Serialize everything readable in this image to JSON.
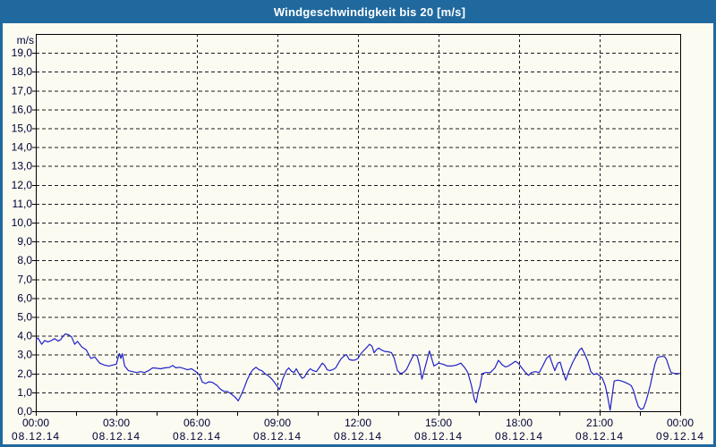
{
  "window": {
    "title": "Windgeschwindigkeit bis 20 [m/s]"
  },
  "colors": {
    "titlebar_bg": "#20699e",
    "window_border": "#20699e",
    "background": "#fbfbf2",
    "title_text": "#ffffff",
    "axis_text": "#000033",
    "grid": "#1c1c1c",
    "frame": "#000000",
    "series_line": "#2121c8"
  },
  "chart_data": {
    "type": "line",
    "title": "Windgeschwindigkeit bis 20 [m/s]",
    "y_unit": "m/s",
    "ylim": [
      0,
      20
    ],
    "y_tick_step": 1,
    "y_tick_labels": [
      "0,0",
      "1,0",
      "2,0",
      "3,0",
      "4,0",
      "5,0",
      "6,0",
      "7,0",
      "8,0",
      "9,0",
      "10,0",
      "11,0",
      "12,0",
      "13,0",
      "14,0",
      "15,0",
      "16,0",
      "17,0",
      "18,0",
      "19,0"
    ],
    "xlim_hours": [
      0,
      24
    ],
    "x_gridline_hours": [
      3,
      6,
      9,
      12,
      15,
      18,
      21
    ],
    "x_minor_tick_step_hours": 1.5,
    "grid_style": "dashed",
    "x_major_ticks": [
      {
        "hour": 0,
        "time": "00:00",
        "date": "08.12.14"
      },
      {
        "hour": 3,
        "time": "03:00",
        "date": "08.12.14"
      },
      {
        "hour": 6,
        "time": "06:00",
        "date": "08.12.14"
      },
      {
        "hour": 9,
        "time": "09:00",
        "date": "08.12.14"
      },
      {
        "hour": 12,
        "time": "12:00",
        "date": "08.12.14"
      },
      {
        "hour": 15,
        "time": "15:00",
        "date": "08.12.14"
      },
      {
        "hour": 18,
        "time": "18:00",
        "date": "08.12.14"
      },
      {
        "hour": 21,
        "time": "21:00",
        "date": "08.12.14"
      },
      {
        "hour": 24,
        "time": "00:00",
        "date": "09.12.14"
      }
    ],
    "series": [
      {
        "name": "Windgeschwindigkeit",
        "unit": "m/s",
        "color": "#2121c8",
        "points": [
          [
            0.0,
            3.8
          ],
          [
            0.08,
            3.88
          ],
          [
            0.22,
            3.55
          ],
          [
            0.33,
            3.75
          ],
          [
            0.45,
            3.68
          ],
          [
            0.58,
            3.75
          ],
          [
            0.7,
            3.85
          ],
          [
            0.83,
            3.72
          ],
          [
            0.93,
            3.8
          ],
          [
            1.0,
            3.95
          ],
          [
            1.1,
            4.1
          ],
          [
            1.22,
            4.05
          ],
          [
            1.33,
            3.95
          ],
          [
            1.45,
            3.55
          ],
          [
            1.55,
            3.7
          ],
          [
            1.72,
            3.4
          ],
          [
            1.88,
            3.25
          ],
          [
            2.05,
            2.8
          ],
          [
            2.2,
            2.88
          ],
          [
            2.38,
            2.55
          ],
          [
            2.55,
            2.45
          ],
          [
            2.72,
            2.4
          ],
          [
            2.87,
            2.45
          ],
          [
            3.0,
            2.5
          ],
          [
            3.11,
            3.05
          ],
          [
            3.17,
            2.8
          ],
          [
            3.22,
            3.05
          ],
          [
            3.31,
            2.4
          ],
          [
            3.45,
            2.15
          ],
          [
            3.6,
            2.1
          ],
          [
            3.75,
            2.05
          ],
          [
            3.9,
            2.1
          ],
          [
            4.05,
            2.05
          ],
          [
            4.2,
            2.15
          ],
          [
            4.35,
            2.3
          ],
          [
            4.5,
            2.28
          ],
          [
            4.65,
            2.25
          ],
          [
            4.8,
            2.3
          ],
          [
            4.97,
            2.32
          ],
          [
            5.1,
            2.42
          ],
          [
            5.22,
            2.3
          ],
          [
            5.35,
            2.33
          ],
          [
            5.5,
            2.27
          ],
          [
            5.65,
            2.2
          ],
          [
            5.8,
            2.25
          ],
          [
            5.98,
            2.08
          ],
          [
            6.1,
            1.92
          ],
          [
            6.2,
            1.55
          ],
          [
            6.32,
            1.47
          ],
          [
            6.45,
            1.56
          ],
          [
            6.58,
            1.53
          ],
          [
            6.75,
            1.37
          ],
          [
            6.87,
            1.18
          ],
          [
            7.0,
            1.06
          ],
          [
            7.12,
            1.05
          ],
          [
            7.25,
            0.95
          ],
          [
            7.42,
            0.75
          ],
          [
            7.54,
            0.55
          ],
          [
            7.65,
            0.87
          ],
          [
            7.77,
            1.27
          ],
          [
            7.87,
            1.66
          ],
          [
            7.99,
            2.0
          ],
          [
            8.08,
            2.2
          ],
          [
            8.2,
            2.33
          ],
          [
            8.32,
            2.2
          ],
          [
            8.43,
            2.14
          ],
          [
            8.55,
            1.97
          ],
          [
            8.66,
            1.88
          ],
          [
            8.78,
            1.72
          ],
          [
            8.88,
            1.55
          ],
          [
            9.0,
            1.3
          ],
          [
            9.08,
            1.15
          ],
          [
            9.2,
            1.72
          ],
          [
            9.33,
            2.15
          ],
          [
            9.42,
            2.3
          ],
          [
            9.52,
            2.12
          ],
          [
            9.62,
            2.05
          ],
          [
            9.7,
            2.25
          ],
          [
            9.82,
            1.95
          ],
          [
            9.92,
            1.75
          ],
          [
            10.0,
            1.8
          ],
          [
            10.12,
            2.1
          ],
          [
            10.22,
            2.25
          ],
          [
            10.33,
            2.15
          ],
          [
            10.45,
            2.1
          ],
          [
            10.55,
            2.3
          ],
          [
            10.67,
            2.55
          ],
          [
            10.75,
            2.45
          ],
          [
            10.85,
            2.2
          ],
          [
            10.95,
            2.15
          ],
          [
            11.05,
            2.2
          ],
          [
            11.17,
            2.3
          ],
          [
            11.27,
            2.55
          ],
          [
            11.38,
            2.8
          ],
          [
            11.5,
            2.95
          ],
          [
            11.57,
            3.0
          ],
          [
            11.67,
            2.75
          ],
          [
            11.78,
            2.7
          ],
          [
            11.9,
            2.72
          ],
          [
            12.0,
            2.8
          ],
          [
            12.08,
            3.0
          ],
          [
            12.17,
            3.15
          ],
          [
            12.27,
            3.3
          ],
          [
            12.35,
            3.42
          ],
          [
            12.43,
            3.55
          ],
          [
            12.52,
            3.45
          ],
          [
            12.6,
            3.1
          ],
          [
            12.68,
            3.25
          ],
          [
            12.77,
            3.35
          ],
          [
            12.87,
            3.25
          ],
          [
            13.0,
            3.17
          ],
          [
            13.13,
            3.15
          ],
          [
            13.25,
            3.1
          ],
          [
            13.35,
            2.8
          ],
          [
            13.47,
            2.15
          ],
          [
            13.58,
            2.0
          ],
          [
            13.69,
            2.05
          ],
          [
            13.8,
            2.2
          ],
          [
            13.97,
            2.7
          ],
          [
            14.08,
            3.0
          ],
          [
            14.2,
            2.95
          ],
          [
            14.3,
            2.4
          ],
          [
            14.38,
            1.7
          ],
          [
            14.53,
            2.5
          ],
          [
            14.66,
            3.2
          ],
          [
            14.83,
            2.4
          ],
          [
            15.0,
            2.55
          ],
          [
            15.16,
            2.5
          ],
          [
            15.33,
            2.4
          ],
          [
            15.5,
            2.4
          ],
          [
            15.67,
            2.45
          ],
          [
            15.83,
            2.55
          ],
          [
            15.98,
            2.3
          ],
          [
            16.09,
            2.05
          ],
          [
            16.22,
            1.4
          ],
          [
            16.33,
            0.65
          ],
          [
            16.4,
            0.45
          ],
          [
            16.48,
            1.05
          ],
          [
            16.54,
            1.3
          ],
          [
            16.63,
            2.0
          ],
          [
            16.76,
            2.05
          ],
          [
            16.93,
            2.05
          ],
          [
            17.1,
            2.3
          ],
          [
            17.23,
            2.7
          ],
          [
            17.38,
            2.45
          ],
          [
            17.49,
            2.35
          ],
          [
            17.6,
            2.4
          ],
          [
            17.71,
            2.5
          ],
          [
            17.86,
            2.65
          ],
          [
            17.97,
            2.55
          ],
          [
            18.1,
            2.3
          ],
          [
            18.24,
            2.05
          ],
          [
            18.35,
            1.9
          ],
          [
            18.46,
            2.05
          ],
          [
            18.61,
            2.1
          ],
          [
            18.75,
            2.05
          ],
          [
            18.88,
            2.4
          ],
          [
            19.02,
            2.8
          ],
          [
            19.13,
            2.95
          ],
          [
            19.24,
            2.5
          ],
          [
            19.33,
            2.15
          ],
          [
            19.44,
            2.55
          ],
          [
            19.53,
            2.6
          ],
          [
            19.64,
            2.05
          ],
          [
            19.74,
            1.65
          ],
          [
            19.85,
            2.1
          ],
          [
            20.0,
            2.6
          ],
          [
            20.13,
            2.95
          ],
          [
            20.25,
            3.25
          ],
          [
            20.33,
            3.35
          ],
          [
            20.44,
            3.05
          ],
          [
            20.56,
            2.65
          ],
          [
            20.67,
            2.1
          ],
          [
            20.78,
            1.95
          ],
          [
            20.9,
            2.0
          ],
          [
            20.98,
            1.9
          ],
          [
            21.1,
            1.75
          ],
          [
            21.21,
            1.35
          ],
          [
            21.28,
            0.9
          ],
          [
            21.39,
            0.05
          ],
          [
            21.45,
            0.65
          ],
          [
            21.54,
            1.6
          ],
          [
            21.68,
            1.65
          ],
          [
            21.81,
            1.6
          ],
          [
            21.92,
            1.55
          ],
          [
            22.07,
            1.45
          ],
          [
            22.18,
            1.35
          ],
          [
            22.26,
            1.1
          ],
          [
            22.35,
            0.65
          ],
          [
            22.44,
            0.25
          ],
          [
            22.54,
            0.1
          ],
          [
            22.63,
            0.15
          ],
          [
            22.72,
            0.5
          ],
          [
            22.8,
            0.9
          ],
          [
            22.89,
            1.4
          ],
          [
            22.98,
            2.0
          ],
          [
            23.06,
            2.5
          ],
          [
            23.15,
            2.85
          ],
          [
            23.26,
            2.9
          ],
          [
            23.41,
            2.9
          ],
          [
            23.49,
            2.75
          ],
          [
            23.58,
            2.35
          ],
          [
            23.66,
            2.05
          ],
          [
            23.8,
            2.0
          ],
          [
            23.92,
            2.0
          ],
          [
            24.0,
            2.0
          ]
        ]
      }
    ]
  }
}
